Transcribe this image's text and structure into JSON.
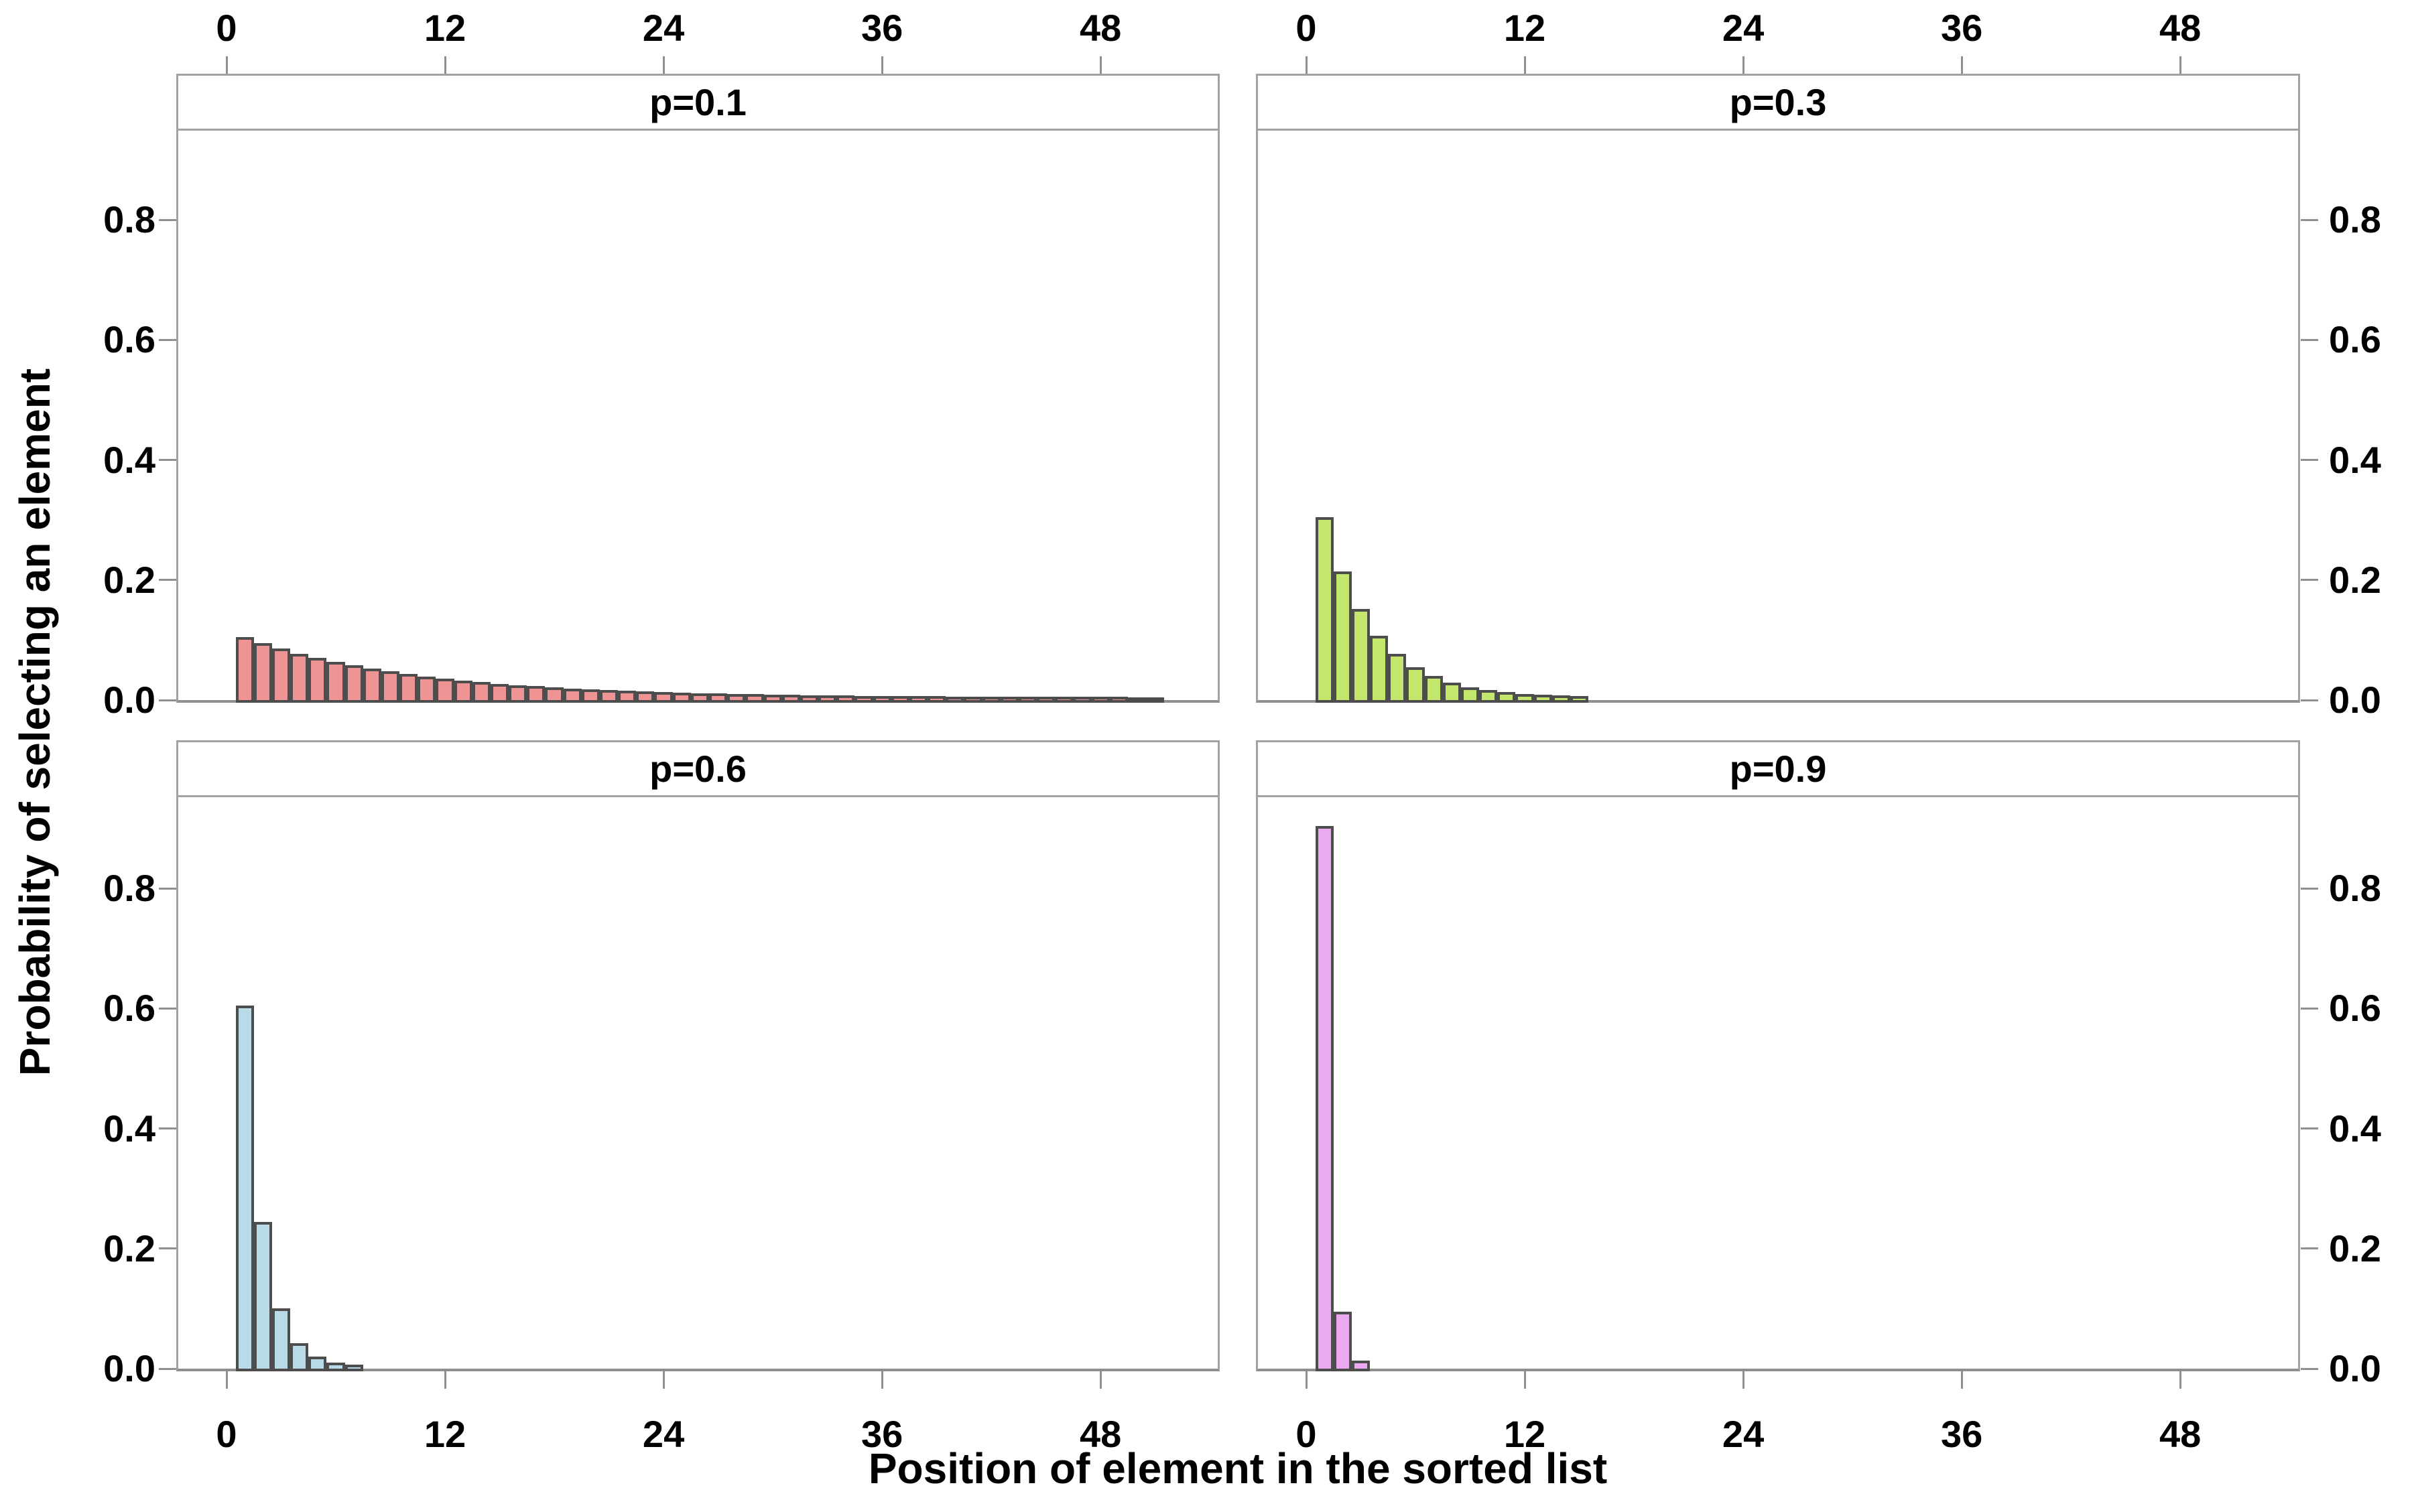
{
  "figure": {
    "xlabel": "Position of element in the sorted list",
    "ylabel": "Probability of selecting an element"
  },
  "chart_data": {
    "type": "bar",
    "subtype": "histogram-small-multiples",
    "title": "",
    "xlabel": "Position of element in the sorted list",
    "ylabel": "Probability of selecting an element",
    "x_ticks": [
      0,
      12,
      24,
      36,
      48
    ],
    "y_tick_labels": [
      "0.0",
      "0.2",
      "0.4",
      "0.6",
      "0.8"
    ],
    "xlim": [
      -2.65,
      54.45
    ],
    "ylim": [
      0,
      0.949
    ],
    "grid": false,
    "legend_position": "none",
    "bar_edge_color": "#4d4d4d",
    "panel_border_color": "#a2a2a2",
    "axis_line_color": "#8f8f8f",
    "panels": [
      {
        "label": "p=0.1",
        "p": 0.1,
        "color": "#EE9494",
        "start_x": 1,
        "values": [
          0.1,
          0.09,
          0.081,
          0.0729,
          0.06561,
          0.05905,
          0.05314,
          0.04783,
          0.04305,
          0.03874,
          0.03487,
          0.03138,
          0.02824,
          0.02542,
          0.02288,
          0.02059,
          0.01853,
          0.01668,
          0.01501,
          0.01351,
          0.01216,
          0.01094,
          0.00985,
          0.00886,
          0.00798,
          0.00718,
          0.00646,
          0.00581,
          0.00523,
          0.00471,
          0.00424,
          0.00382,
          0.00343,
          0.00309,
          0.00278,
          0.0025,
          0.00225,
          0.00203,
          0.00182,
          0.00164,
          0.00148,
          0.00133,
          0.0012,
          0.00108,
          0.00097,
          0.00087,
          0.00079,
          0.00071,
          0.00064,
          0.00057,
          0.00052
        ]
      },
      {
        "label": "p=0.3",
        "p": 0.3,
        "color": "#C3E66C",
        "start_x": 1,
        "values": [
          0.3,
          0.21,
          0.147,
          0.1029,
          0.07203,
          0.05042,
          0.03529,
          0.02471,
          0.01729,
          0.01211,
          0.00847,
          0.00593,
          0.00415,
          0.00291,
          0.00203
        ]
      },
      {
        "label": "p=0.6",
        "p": 0.6,
        "color": "#B9DBE7",
        "start_x": 1,
        "values": [
          0.6,
          0.24,
          0.096,
          0.0384,
          0.01536,
          0.00614,
          0.00246
        ]
      },
      {
        "label": "p=0.9",
        "p": 0.9,
        "color": "#EBA9EF",
        "start_x": 1,
        "values": [
          0.9,
          0.09,
          0.009
        ]
      }
    ]
  }
}
